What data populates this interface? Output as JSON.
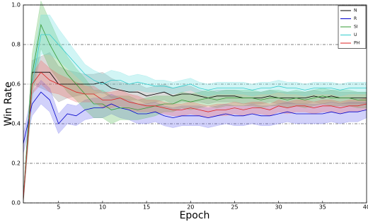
{
  "chart_data": {
    "type": "line",
    "x_label": "Epoch",
    "y_label": "Win Rate",
    "x": [
      1,
      2,
      3,
      4,
      5,
      6,
      7,
      8,
      9,
      10,
      11,
      12,
      13,
      14,
      15,
      16,
      17,
      18,
      19,
      20,
      21,
      22,
      23,
      24,
      25,
      26,
      27,
      28,
      29,
      30,
      31,
      32,
      33,
      34,
      35,
      36,
      37,
      38,
      39,
      40
    ],
    "xlim": [
      1,
      40
    ],
    "xticks": [
      5,
      10,
      15,
      20,
      25,
      30,
      35,
      40
    ],
    "ylim": [
      0,
      1
    ],
    "yticks": [
      {
        "value": 0,
        "label": "0.0"
      },
      0.2,
      0.4,
      0.6,
      0.8,
      {
        "value": 1,
        "label": "1.0"
      }
    ],
    "grid": true,
    "legend": "upper right",
    "series": [
      {
        "name": "N",
        "color": "#000000",
        "band_color": "#888888",
        "values": [
          0.02,
          0.66,
          0.66,
          0.66,
          0.6,
          0.6,
          0.6,
          0.6,
          0.6,
          0.61,
          0.58,
          0.57,
          0.56,
          0.56,
          0.54,
          0.55,
          0.56,
          0.54,
          0.55,
          0.55,
          0.54,
          0.53,
          0.54,
          0.54,
          0.54,
          0.53,
          0.53,
          0.53,
          0.54,
          0.53,
          0.53,
          0.53,
          0.53,
          0.54,
          0.53,
          0.54,
          0.53,
          0.53,
          0.53,
          0.53
        ],
        "error": [
          0.02,
          0.06,
          0.08,
          0.1,
          0.09,
          0.07,
          0.06,
          0.05,
          0.05,
          0.05,
          0.05,
          0.04,
          0.04,
          0.04,
          0.04,
          0.04,
          0.04,
          0.04,
          0.04,
          0.04,
          0.03,
          0.03,
          0.03,
          0.03,
          0.03,
          0.03,
          0.03,
          0.03,
          0.03,
          0.03,
          0.03,
          0.03,
          0.03,
          0.03,
          0.03,
          0.03,
          0.03,
          0.03,
          0.03,
          0.03
        ]
      },
      {
        "name": "R",
        "color": "#0000cc",
        "band_color": "#6666ee",
        "values": [
          0.3,
          0.5,
          0.56,
          0.52,
          0.4,
          0.45,
          0.44,
          0.47,
          0.48,
          0.48,
          0.5,
          0.48,
          0.47,
          0.45,
          0.45,
          0.46,
          0.44,
          0.43,
          0.44,
          0.44,
          0.44,
          0.43,
          0.44,
          0.45,
          0.44,
          0.44,
          0.45,
          0.44,
          0.44,
          0.45,
          0.46,
          0.45,
          0.45,
          0.45,
          0.45,
          0.46,
          0.45,
          0.46,
          0.46,
          0.47
        ],
        "error": [
          0.05,
          0.06,
          0.06,
          0.06,
          0.05,
          0.05,
          0.05,
          0.05,
          0.05,
          0.05,
          0.05,
          0.05,
          0.05,
          0.05,
          0.05,
          0.05,
          0.05,
          0.05,
          0.05,
          0.05,
          0.05,
          0.05,
          0.05,
          0.05,
          0.05,
          0.05,
          0.05,
          0.05,
          0.05,
          0.05,
          0.05,
          0.05,
          0.05,
          0.05,
          0.05,
          0.05,
          0.05,
          0.05,
          0.05,
          0.04
        ]
      },
      {
        "name": "SI",
        "color": "#339933",
        "band_color": "#55bb55",
        "values": [
          0.02,
          0.65,
          0.9,
          0.8,
          0.72,
          0.65,
          0.6,
          0.55,
          0.5,
          0.5,
          0.47,
          0.48,
          0.48,
          0.47,
          0.48,
          0.49,
          0.5,
          0.5,
          0.52,
          0.51,
          0.52,
          0.53,
          0.52,
          0.53,
          0.53,
          0.53,
          0.53,
          0.52,
          0.53,
          0.53,
          0.52,
          0.53,
          0.52,
          0.53,
          0.54,
          0.53,
          0.53,
          0.53,
          0.52,
          0.52
        ],
        "error": [
          0.02,
          0.1,
          0.12,
          0.12,
          0.1,
          0.09,
          0.08,
          0.08,
          0.07,
          0.07,
          0.07,
          0.06,
          0.06,
          0.05,
          0.05,
          0.05,
          0.04,
          0.04,
          0.04,
          0.04,
          0.04,
          0.04,
          0.04,
          0.04,
          0.04,
          0.04,
          0.04,
          0.04,
          0.04,
          0.04,
          0.04,
          0.04,
          0.04,
          0.04,
          0.04,
          0.04,
          0.04,
          0.04,
          0.04,
          0.04
        ]
      },
      {
        "name": "U",
        "color": "#33cccc",
        "band_color": "#66dddd",
        "values": [
          0.02,
          0.6,
          0.85,
          0.85,
          0.8,
          0.75,
          0.7,
          0.65,
          0.62,
          0.6,
          0.62,
          0.62,
          0.6,
          0.61,
          0.6,
          0.59,
          0.59,
          0.58,
          0.59,
          0.6,
          0.58,
          0.57,
          0.58,
          0.58,
          0.58,
          0.58,
          0.57,
          0.58,
          0.58,
          0.59,
          0.58,
          0.58,
          0.57,
          0.58,
          0.58,
          0.58,
          0.57,
          0.58,
          0.58,
          0.58
        ],
        "error": [
          0.02,
          0.08,
          0.1,
          0.1,
          0.08,
          0.07,
          0.06,
          0.05,
          0.05,
          0.05,
          0.05,
          0.04,
          0.04,
          0.04,
          0.04,
          0.03,
          0.03,
          0.03,
          0.03,
          0.03,
          0.03,
          0.03,
          0.03,
          0.03,
          0.03,
          0.03,
          0.03,
          0.03,
          0.03,
          0.03,
          0.03,
          0.03,
          0.03,
          0.03,
          0.03,
          0.03,
          0.03,
          0.03,
          0.03,
          0.03
        ]
      },
      {
        "name": "PH",
        "color": "#dd2222",
        "band_color": "#ee6666",
        "values": [
          0.02,
          0.6,
          0.66,
          0.62,
          0.6,
          0.58,
          0.56,
          0.55,
          0.55,
          0.52,
          0.52,
          0.53,
          0.51,
          0.5,
          0.49,
          0.49,
          0.48,
          0.47,
          0.47,
          0.48,
          0.47,
          0.46,
          0.47,
          0.47,
          0.48,
          0.47,
          0.48,
          0.48,
          0.47,
          0.49,
          0.48,
          0.49,
          0.49,
          0.48,
          0.49,
          0.49,
          0.48,
          0.49,
          0.49,
          0.5
        ],
        "error": [
          0.02,
          0.05,
          0.06,
          0.06,
          0.05,
          0.05,
          0.05,
          0.04,
          0.04,
          0.04,
          0.04,
          0.04,
          0.04,
          0.04,
          0.03,
          0.03,
          0.03,
          0.03,
          0.03,
          0.03,
          0.03,
          0.03,
          0.03,
          0.03,
          0.03,
          0.03,
          0.03,
          0.03,
          0.03,
          0.03,
          0.03,
          0.03,
          0.03,
          0.03,
          0.03,
          0.03,
          0.03,
          0.03,
          0.03,
          0.03
        ]
      }
    ]
  }
}
